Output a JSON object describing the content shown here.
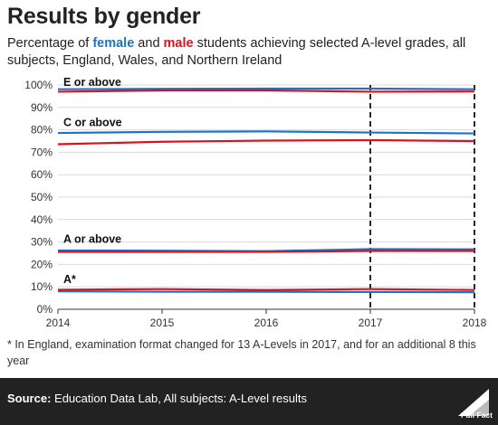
{
  "header": {
    "title": "Results by gender",
    "subtitle_prefix": "Percentage of ",
    "subtitle_female": "female",
    "subtitle_and": " and ",
    "subtitle_male": "male",
    "subtitle_suffix": " students achieving selected A-level grades, all subjects, England, Wales, and Northern Ireland"
  },
  "colors": {
    "female": "#1a73c8",
    "male": "#e0101a"
  },
  "chart_data": {
    "type": "line",
    "x": [
      2014,
      2015,
      2016,
      2017,
      2018
    ],
    "xlim": [
      2014,
      2018
    ],
    "ylim": [
      0,
      100
    ],
    "yticks": [
      0,
      10,
      20,
      30,
      40,
      50,
      60,
      70,
      80,
      90,
      100
    ],
    "ytick_labels": [
      "0%",
      "10%",
      "20%",
      "30%",
      "40%",
      "50%",
      "60%",
      "70%",
      "80%",
      "90%",
      "100%"
    ],
    "xtick_labels": [
      "2014",
      "2015",
      "2016",
      "2017",
      "2018"
    ],
    "grid": true,
    "series": [
      {
        "group": "E or above",
        "gender": "female",
        "values": [
          98.1,
          98.3,
          98.4,
          98.4,
          98.1
        ]
      },
      {
        "group": "E or above",
        "gender": "male",
        "values": [
          97.0,
          97.6,
          97.6,
          97.0,
          97.1
        ]
      },
      {
        "group": "C or above",
        "gender": "female",
        "values": [
          78.6,
          79.1,
          79.3,
          78.8,
          78.4
        ]
      },
      {
        "group": "C or above",
        "gender": "male",
        "values": [
          73.6,
          74.7,
          75.2,
          75.4,
          75.0
        ]
      },
      {
        "group": "A or above",
        "gender": "female",
        "values": [
          26.2,
          26.1,
          25.9,
          26.8,
          26.7
        ]
      },
      {
        "group": "A or above",
        "gender": "male",
        "values": [
          25.6,
          25.6,
          25.6,
          26.0,
          26.0
        ]
      },
      {
        "group": "A*",
        "gender": "female",
        "values": [
          8.0,
          7.8,
          7.8,
          7.7,
          7.6
        ]
      },
      {
        "group": "A*",
        "gender": "male",
        "values": [
          8.7,
          9.0,
          8.6,
          9.0,
          8.6
        ]
      }
    ],
    "annotations": [
      {
        "label": "E or above",
        "y": 100
      },
      {
        "label": "C or above",
        "y": 82
      },
      {
        "label": "A or above",
        "y": 30
      },
      {
        "label": "A*",
        "y": 12
      }
    ],
    "marker_lines": [
      2017,
      2018
    ]
  },
  "footnote": "* In England, examination format changed for 13 A-Levels in 2017, and for an additional 8 this year",
  "footer": {
    "source_label": "Source:",
    "source_text": " Education Data Lab, All subjects: A-Level results",
    "logo_text": "Full Fact"
  }
}
